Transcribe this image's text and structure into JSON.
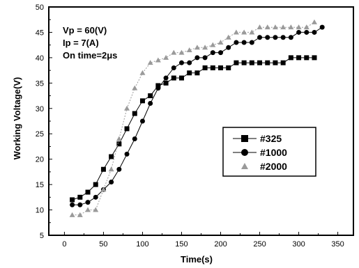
{
  "chart_data": {
    "type": "line",
    "title": "",
    "xlabel": "Time(s)",
    "ylabel": "Working Voltage(V)",
    "xlim": [
      -20,
      370
    ],
    "ylim": [
      5,
      50
    ],
    "xticks": [
      0,
      50,
      100,
      150,
      200,
      250,
      300,
      350
    ],
    "yticks": [
      5,
      10,
      15,
      20,
      25,
      30,
      35,
      40,
      45,
      50
    ],
    "annotations": [
      "Vp = 60(V)",
      "Ip = 7(A)",
      "On time=2μs"
    ],
    "legend_position": "center-right",
    "series": [
      {
        "name": "#325",
        "marker": "square",
        "color": "#000000",
        "x": [
          10,
          20,
          30,
          40,
          50,
          60,
          70,
          80,
          90,
          100,
          110,
          120,
          130,
          140,
          150,
          160,
          170,
          180,
          190,
          200,
          210,
          220,
          230,
          240,
          250,
          260,
          270,
          280,
          290,
          300,
          310,
          320
        ],
        "y": [
          12,
          12.5,
          13.5,
          15,
          18,
          20.5,
          23,
          26,
          29,
          31.5,
          32.5,
          34.5,
          35,
          36,
          36,
          37,
          37,
          38,
          38,
          38,
          38,
          39,
          39,
          39,
          39,
          39,
          39,
          39,
          40,
          40,
          40,
          40
        ]
      },
      {
        "name": "#1000",
        "marker": "circle",
        "color": "#000000",
        "x": [
          10,
          20,
          30,
          40,
          50,
          60,
          70,
          80,
          90,
          100,
          110,
          120,
          130,
          140,
          150,
          160,
          170,
          180,
          190,
          200,
          210,
          220,
          230,
          240,
          250,
          260,
          270,
          280,
          290,
          300,
          310,
          320,
          330
        ],
        "y": [
          11,
          11,
          11.5,
          12.5,
          14,
          15.5,
          18,
          21,
          24,
          27.5,
          31,
          34,
          36,
          38,
          39,
          39,
          40,
          40,
          41,
          41,
          42,
          43,
          43,
          43,
          44,
          44,
          44,
          44,
          44,
          45,
          45,
          45,
          46
        ]
      },
      {
        "name": "#2000",
        "marker": "triangle",
        "color": "#9a9a9a",
        "x": [
          10,
          20,
          30,
          40,
          50,
          60,
          70,
          80,
          90,
          100,
          110,
          120,
          130,
          140,
          150,
          160,
          170,
          180,
          190,
          200,
          210,
          220,
          230,
          240,
          250,
          260,
          270,
          280,
          290,
          300,
          310,
          320
        ],
        "y": [
          9,
          9,
          10,
          10,
          14,
          18,
          24,
          30,
          34,
          37,
          39,
          39.5,
          40,
          41,
          41,
          41.5,
          42,
          42,
          42.5,
          43,
          44,
          45,
          45,
          45,
          46,
          46,
          46,
          46,
          46,
          46,
          46,
          47
        ]
      }
    ]
  }
}
